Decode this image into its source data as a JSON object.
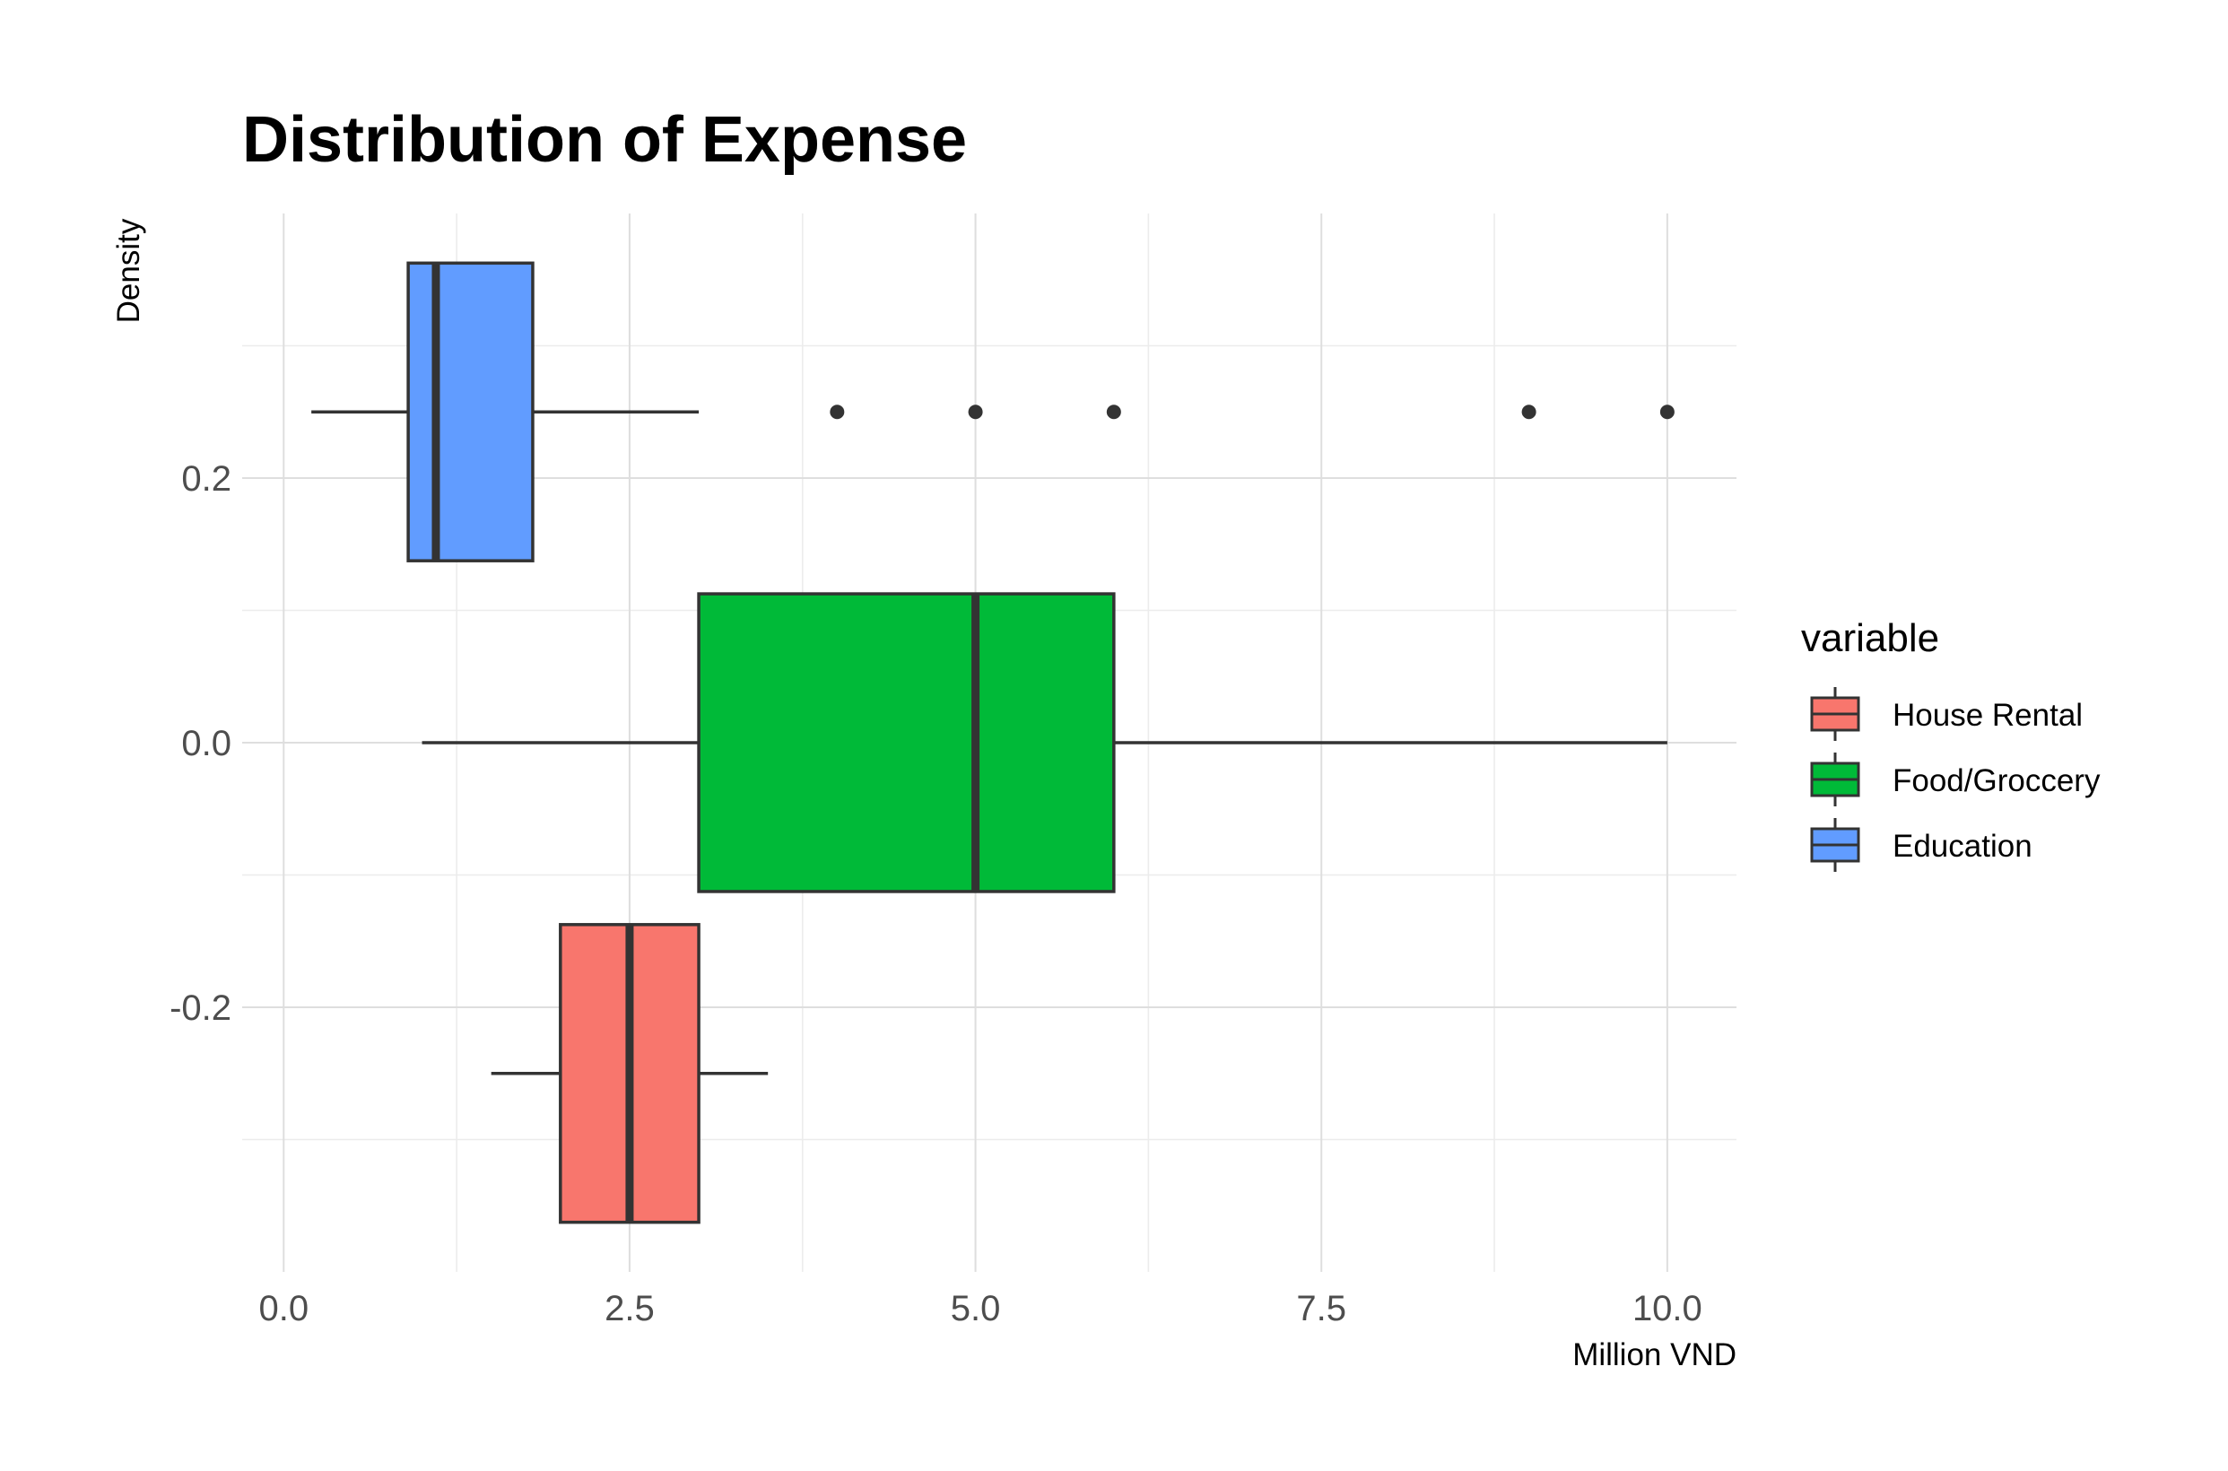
{
  "chart_data": {
    "type": "boxplot",
    "orientation": "horizontal",
    "title": "Distribution of Expense",
    "xlabel": "Million VND",
    "ylabel": "Density",
    "xlim": [
      -0.3,
      10.5
    ],
    "ylim": [
      -0.4,
      0.4
    ],
    "x_ticks": [
      0.0,
      2.5,
      5.0,
      7.5,
      10.0
    ],
    "x_tick_labels": [
      "0.0",
      "2.5",
      "5.0",
      "7.5",
      "10.0"
    ],
    "y_ticks": [
      -0.2,
      0.0,
      0.2
    ],
    "y_tick_labels": [
      "-0.2",
      "0.0",
      "0.2"
    ],
    "grid": true,
    "legend": {
      "title": "variable",
      "placement": "right"
    },
    "series": [
      {
        "name": "House Rental",
        "color": "#F8766D",
        "center": -0.25,
        "half_height": 0.1125,
        "whisker_low": 1.5,
        "q1": 2.0,
        "median": 2.5,
        "q3": 3.0,
        "whisker_high": 3.5,
        "outliers": []
      },
      {
        "name": "Food/Groccery",
        "color": "#00BA38",
        "center": 0.0,
        "half_height": 0.1125,
        "whisker_low": 1.0,
        "q1": 3.0,
        "median": 5.0,
        "q3": 6.0,
        "whisker_high": 10.0,
        "outliers": []
      },
      {
        "name": "Education",
        "color": "#619CFF",
        "center": 0.25,
        "half_height": 0.1125,
        "whisker_low": 0.2,
        "q1": 0.9,
        "median": 1.1,
        "q3": 1.8,
        "whisker_high": 3.0,
        "outliers": [
          4,
          5,
          6,
          9,
          10
        ]
      }
    ]
  }
}
